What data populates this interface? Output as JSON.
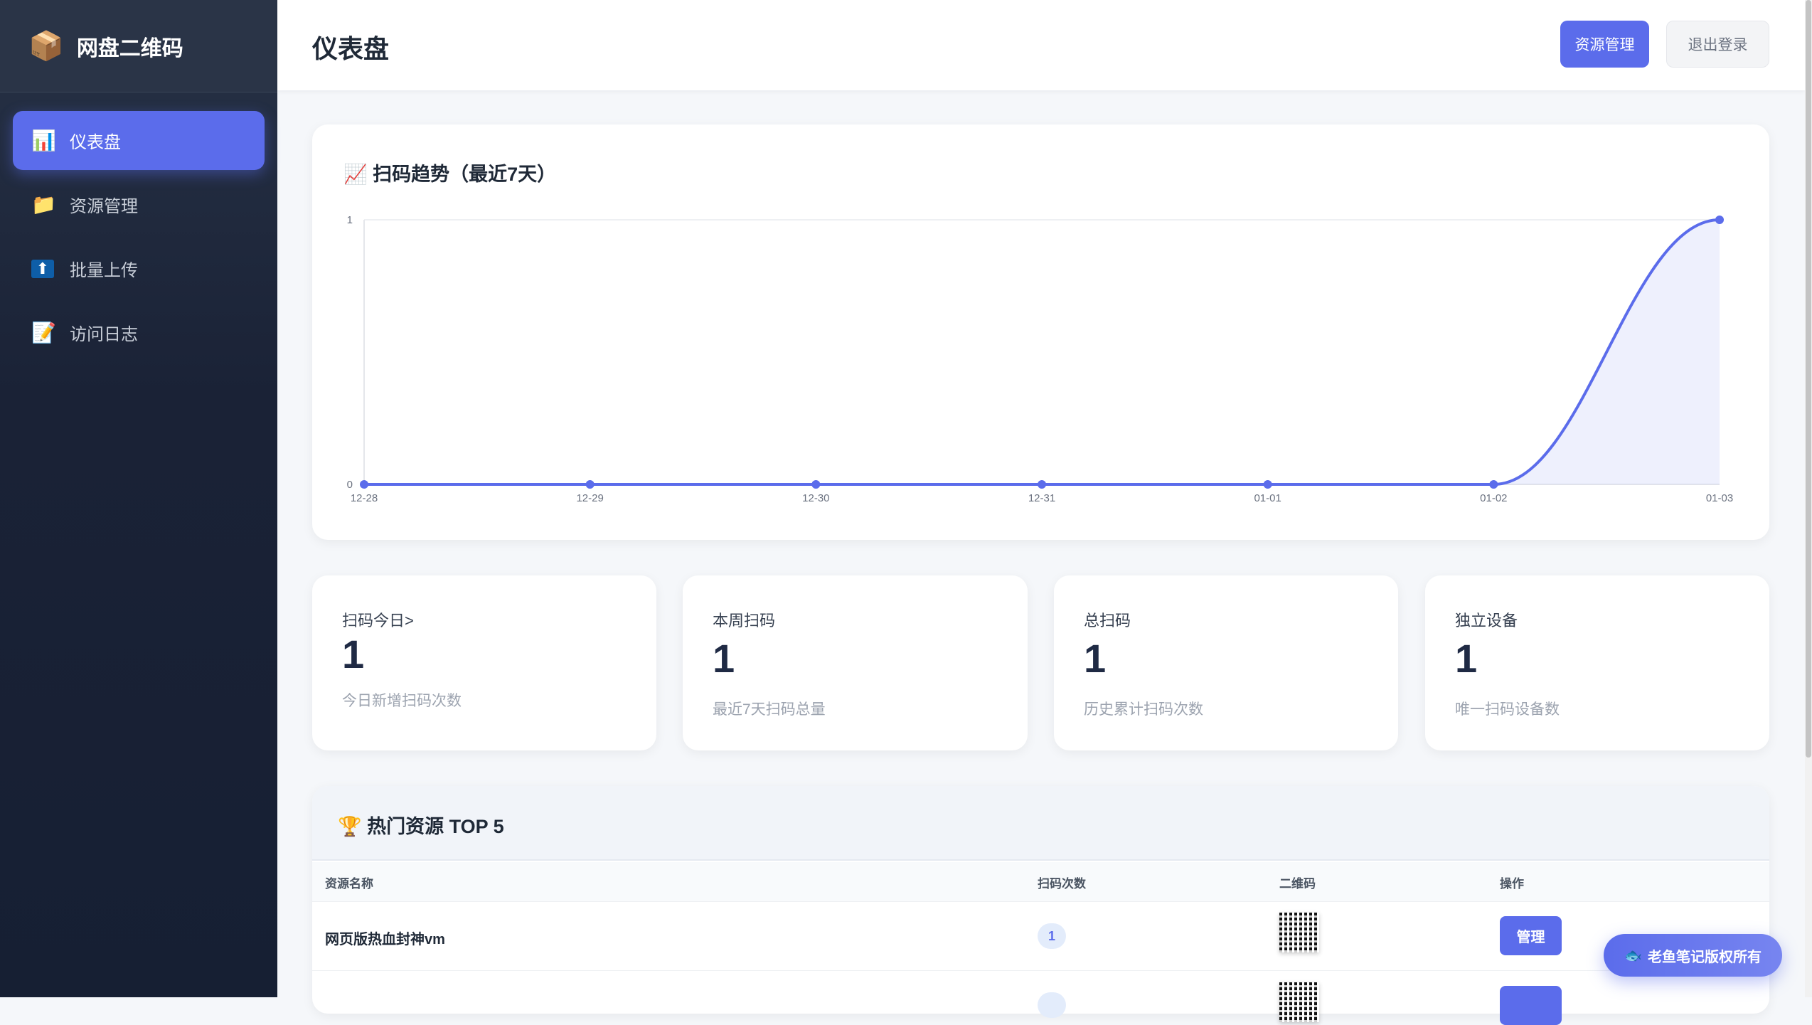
{
  "app": {
    "logo_icon": "package-icon",
    "title": "网盘二维码"
  },
  "sidebar": {
    "items": [
      {
        "label": "仪表盘",
        "icon": "bar-chart-icon",
        "glyph": "📊",
        "active": true
      },
      {
        "label": "资源管理",
        "icon": "folder-icon",
        "glyph": "📁"
      },
      {
        "label": "批量上传",
        "icon": "upload-icon",
        "glyph": "⬆"
      },
      {
        "label": "访问日志",
        "icon": "log-icon",
        "glyph": "📝"
      }
    ]
  },
  "header": {
    "title": "仪表盘",
    "resource_btn": "资源管理",
    "logout_btn": "退出登录"
  },
  "trend": {
    "title": "扫码趋势（最近7天）",
    "icon": "chart-up-icon"
  },
  "chart_data": {
    "type": "area",
    "x": [
      "12-28",
      "12-29",
      "12-30",
      "12-31",
      "01-01",
      "01-02",
      "01-03"
    ],
    "values": [
      0,
      0,
      0,
      0,
      0,
      0,
      1
    ],
    "ylim": [
      0,
      1
    ],
    "yticks": [
      "0",
      "1"
    ],
    "color": "#5b6ceb",
    "grid": true
  },
  "stats": [
    {
      "label": "扫码今日>",
      "value": "1",
      "sub": "今日新增扫码次数"
    },
    {
      "label": "本周扫码",
      "value": "1",
      "sub": "最近7天扫码总量"
    },
    {
      "label": "总扫码",
      "value": "1",
      "sub": "历史累计扫码次数"
    },
    {
      "label": "独立设备",
      "value": "1",
      "sub": "唯一扫码设备数"
    }
  ],
  "top": {
    "title": "热门资源 TOP 5",
    "icon": "trophy-icon",
    "columns": [
      "资源名称",
      "扫码次数",
      "二维码",
      "操作"
    ],
    "rows": [
      {
        "name": "网页版热血封神vm",
        "scans": "1",
        "action": "管理"
      },
      {
        "name": "",
        "scans": "",
        "action": ""
      }
    ]
  },
  "floating": {
    "label": "老鱼笔记版权所有",
    "icon": "fish-icon"
  }
}
